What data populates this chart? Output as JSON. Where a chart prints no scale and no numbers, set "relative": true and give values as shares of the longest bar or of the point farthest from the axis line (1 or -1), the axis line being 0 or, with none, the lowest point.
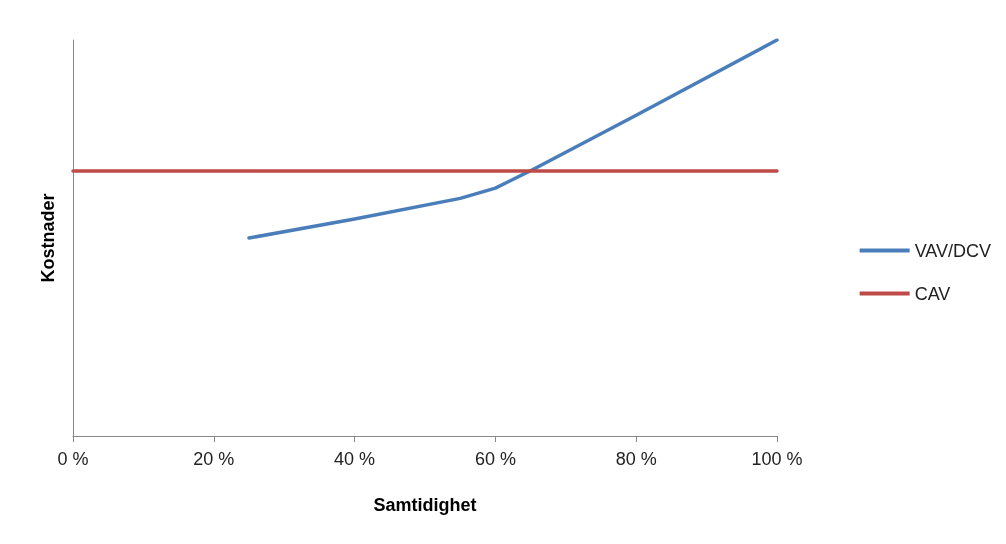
{
  "chart_data": {
    "type": "line",
    "xlabel": "Samtidighet",
    "ylabel": "Kostnader",
    "relative": true,
    "xlim": [
      0,
      100
    ],
    "xticks": [
      {
        "value": 0,
        "label": "0 %"
      },
      {
        "value": 20,
        "label": "20 %"
      },
      {
        "value": 40,
        "label": "40 %"
      },
      {
        "value": 60,
        "label": "60 %"
      },
      {
        "value": 80,
        "label": "80 %"
      },
      {
        "value": 100,
        "label": "100 %"
      }
    ],
    "series": [
      {
        "name": "VAV/DCV",
        "color": "#4a7ebb",
        "x": [
          25,
          40,
          55,
          60,
          65,
          80,
          100
        ],
        "values": [
          0.5,
          0.548,
          0.6,
          0.626,
          0.67,
          0.81,
          1
        ]
      },
      {
        "name": "CAV",
        "color": "#be4b48",
        "x": [
          0,
          100
        ],
        "values": [
          0.669,
          0.669
        ]
      }
    ],
    "grid": false,
    "legend": "right",
    "marker": "none",
    "line_style": "solid"
  }
}
